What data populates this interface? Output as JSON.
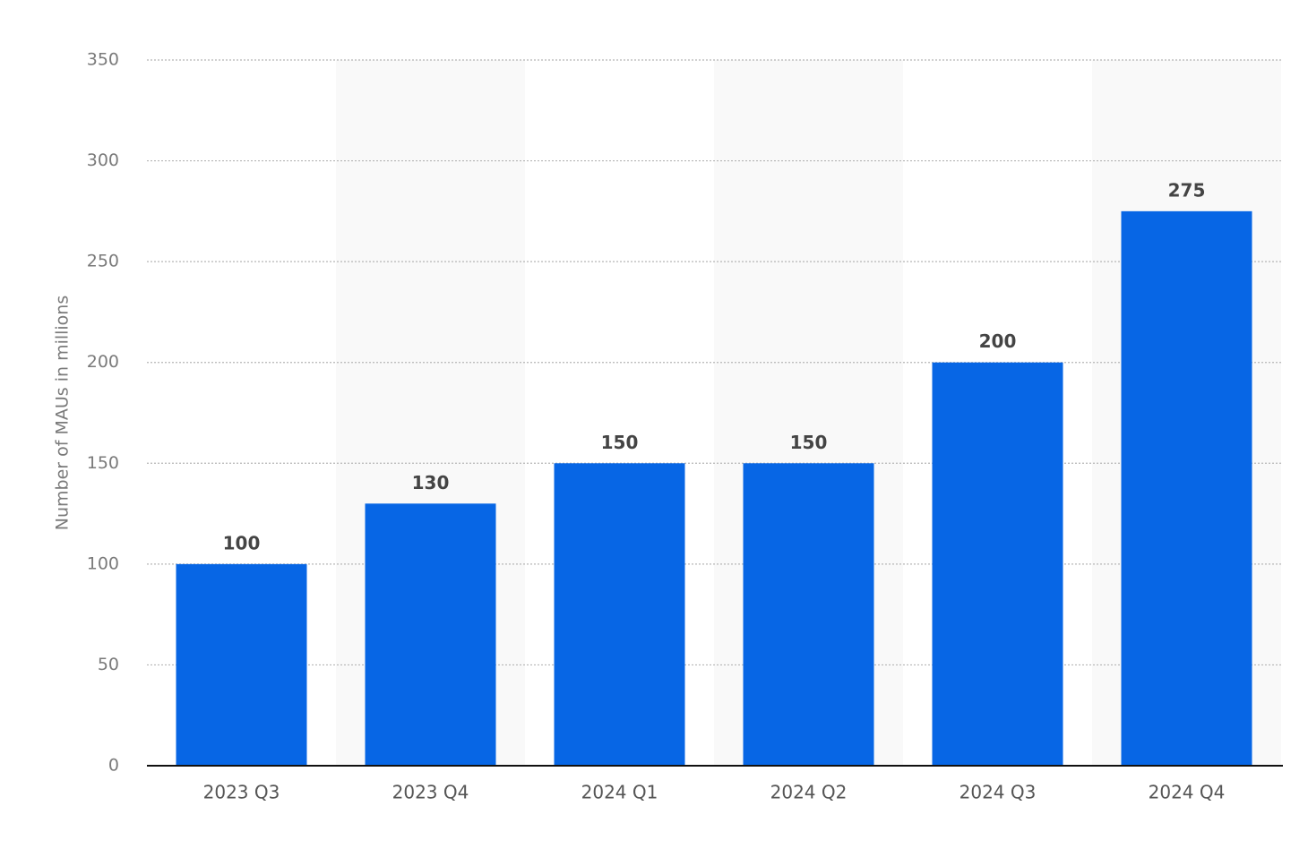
{
  "chart_data": {
    "type": "bar",
    "y_label": "Number of MAUs in millions",
    "categories": [
      "2023 Q3",
      "2023 Q4",
      "2024 Q1",
      "2024 Q2",
      "2024 Q3",
      "2024 Q4"
    ],
    "values": [
      100,
      130,
      150,
      150,
      200,
      275
    ],
    "color": "#0766e5",
    "ylim": [
      0,
      350
    ],
    "yticks": [
      0,
      50,
      100,
      150,
      200,
      250,
      300,
      350
    ],
    "grid": true
  }
}
